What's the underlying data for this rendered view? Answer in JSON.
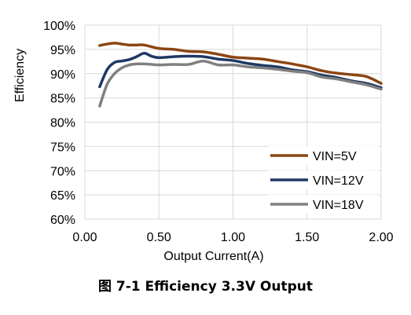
{
  "caption": "图 7-1 Efficiency 3.3V Output",
  "chart_data": {
    "type": "line",
    "xlabel": "Output Current(A)",
    "ylabel": "Efficiency",
    "xlim": [
      0,
      2
    ],
    "ylim": [
      60,
      100
    ],
    "x_ticks": [
      "0.00",
      "0.50",
      "1.00",
      "1.50",
      "2.00"
    ],
    "y_ticks": [
      "60%",
      "65%",
      "70%",
      "75%",
      "80%",
      "85%",
      "90%",
      "95%",
      "100%"
    ],
    "grid": true,
    "legend_position": "bottom-right",
    "series": [
      {
        "name": "VIN=5V",
        "color": "#8B4513",
        "x": [
          0.1,
          0.15,
          0.2,
          0.25,
          0.3,
          0.35,
          0.4,
          0.5,
          0.6,
          0.7,
          0.8,
          0.9,
          1.0,
          1.1,
          1.2,
          1.3,
          1.4,
          1.5,
          1.6,
          1.7,
          1.8,
          1.9,
          2.0
        ],
        "y": [
          95.8,
          96.1,
          96.3,
          96.1,
          95.9,
          95.9,
          95.9,
          95.2,
          95.0,
          94.6,
          94.5,
          94.0,
          93.4,
          93.2,
          93.0,
          92.5,
          92.0,
          91.4,
          90.6,
          90.1,
          89.8,
          89.4,
          88.0
        ]
      },
      {
        "name": "VIN=12V",
        "color": "#1F3864",
        "x": [
          0.1,
          0.15,
          0.2,
          0.25,
          0.3,
          0.35,
          0.4,
          0.45,
          0.5,
          0.6,
          0.7,
          0.8,
          0.9,
          1.0,
          1.1,
          1.2,
          1.3,
          1.4,
          1.5,
          1.6,
          1.7,
          1.8,
          1.9,
          2.0
        ],
        "y": [
          87.3,
          90.8,
          92.3,
          92.6,
          92.9,
          93.5,
          94.2,
          93.6,
          93.3,
          93.5,
          93.6,
          93.5,
          93.0,
          92.7,
          92.1,
          91.7,
          91.4,
          90.8,
          90.4,
          89.7,
          89.2,
          88.5,
          88.0,
          87.1
        ]
      },
      {
        "name": "VIN=18V",
        "color": "#808080",
        "x": [
          0.1,
          0.15,
          0.2,
          0.25,
          0.3,
          0.35,
          0.4,
          0.45,
          0.5,
          0.6,
          0.7,
          0.8,
          0.9,
          1.0,
          1.1,
          1.2,
          1.3,
          1.4,
          1.5,
          1.6,
          1.7,
          1.8,
          1.9,
          2.0
        ],
        "y": [
          83.3,
          87.8,
          90.0,
          91.2,
          91.8,
          92.0,
          92.0,
          91.9,
          91.8,
          91.9,
          91.9,
          92.6,
          91.8,
          91.8,
          91.4,
          91.2,
          90.9,
          90.5,
          90.2,
          89.3,
          88.9,
          88.3,
          87.7,
          86.8
        ]
      }
    ]
  }
}
